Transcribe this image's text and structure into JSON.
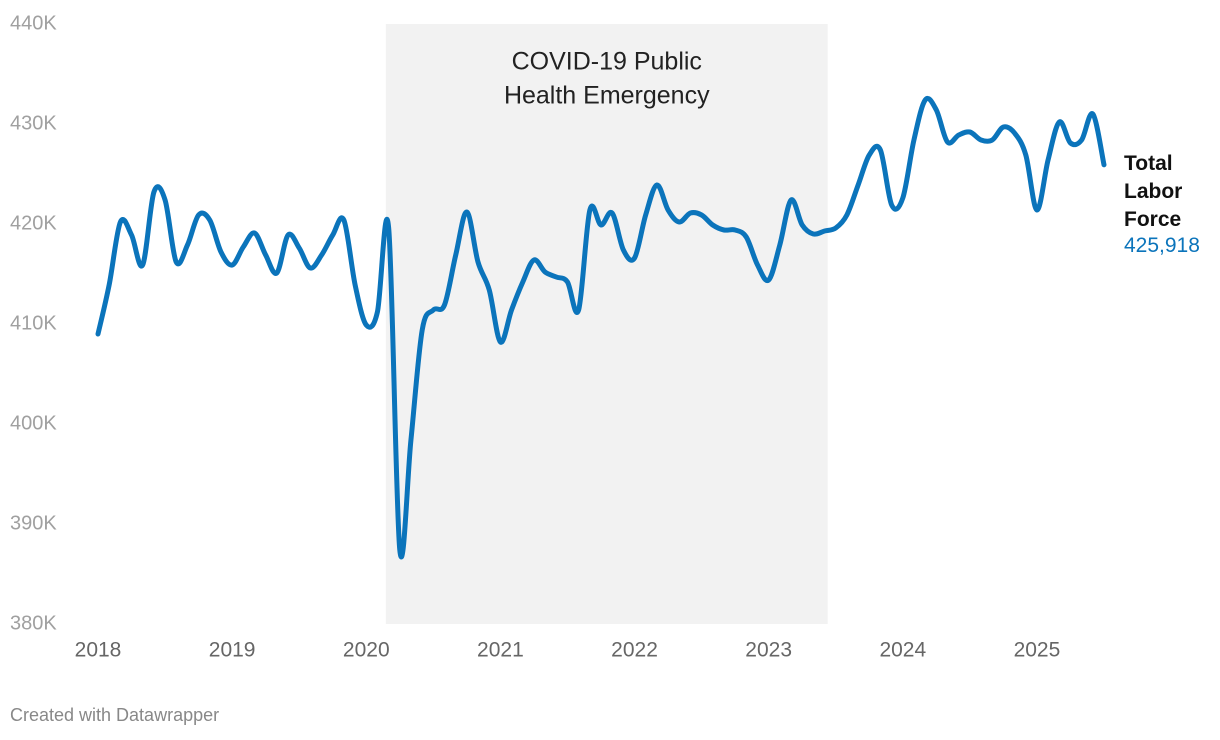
{
  "chart_data": {
    "type": "line",
    "x": [
      2018,
      2018.083,
      2018.167,
      2018.25,
      2018.333,
      2018.417,
      2018.5,
      2018.583,
      2018.667,
      2018.75,
      2018.833,
      2018.917,
      2019,
      2019.083,
      2019.167,
      2019.25,
      2019.333,
      2019.417,
      2019.5,
      2019.583,
      2019.667,
      2019.75,
      2019.833,
      2019.917,
      2020,
      2020.083,
      2020.167,
      2020.25,
      2020.333,
      2020.417,
      2020.5,
      2020.583,
      2020.667,
      2020.75,
      2020.833,
      2020.917,
      2021,
      2021.083,
      2021.167,
      2021.25,
      2021.333,
      2021.417,
      2021.5,
      2021.583,
      2021.667,
      2021.75,
      2021.833,
      2021.917,
      2022,
      2022.083,
      2022.167,
      2022.25,
      2022.333,
      2022.417,
      2022.5,
      2022.583,
      2022.667,
      2022.75,
      2022.833,
      2022.917,
      2023,
      2023.083,
      2023.167,
      2023.25,
      2023.333,
      2023.417,
      2023.5,
      2023.583,
      2023.667,
      2023.75,
      2023.833,
      2023.917,
      2024,
      2024.083,
      2024.167,
      2024.25,
      2024.333,
      2024.417,
      2024.5,
      2024.583,
      2024.667,
      2024.75,
      2024.833,
      2024.917,
      2025,
      2025.083,
      2025.167,
      2025.25,
      2025.333,
      2025.417,
      2025.5
    ],
    "series": [
      {
        "name": "Total Labor Force",
        "color": "#0b74bb",
        "values": [
          409.0,
          413.9,
          420.2,
          418.9,
          415.9,
          423.2,
          422.4,
          416.2,
          417.9,
          420.9,
          420.4,
          417.2,
          415.9,
          417.7,
          419.1,
          416.9,
          415.1,
          418.9,
          417.6,
          415.6,
          416.9,
          418.9,
          420.4,
          413.9,
          409.9,
          411.2,
          419.6,
          387.4,
          398.4,
          409.4,
          411.4,
          411.9,
          416.9,
          421.2,
          416.2,
          413.4,
          408.2,
          411.4,
          414.2,
          416.4,
          415.2,
          414.7,
          414.2,
          411.4,
          421.4,
          419.9,
          421.1,
          417.4,
          416.6,
          420.9,
          423.9,
          421.4,
          420.2,
          421.1,
          420.9,
          419.9,
          419.4,
          419.4,
          418.7,
          415.9,
          414.4,
          417.9,
          422.4,
          419.9,
          419.0,
          419.3,
          419.6,
          420.9,
          423.9,
          426.9,
          427.4,
          421.9,
          422.6,
          428.4,
          432.4,
          431.4,
          428.2,
          428.9,
          429.2,
          428.4,
          428.4,
          429.7,
          429.1,
          426.9,
          421.4,
          426.4,
          430.2,
          428.1,
          428.4,
          431.0,
          425.918
        ],
        "value_labels": [
          null,
          null,
          null,
          null,
          null,
          null,
          null,
          null,
          null,
          null,
          null,
          null,
          null,
          null,
          null,
          null,
          null,
          null,
          null,
          null,
          null,
          null,
          null,
          null,
          null,
          null,
          null,
          null,
          null,
          null,
          null,
          null,
          null,
          null,
          null,
          null,
          null,
          null,
          null,
          null,
          null,
          null,
          null,
          null,
          null,
          null,
          null,
          null,
          null,
          null,
          null,
          null,
          null,
          null,
          null,
          null,
          null,
          null,
          null,
          null,
          null,
          null,
          null,
          null,
          null,
          null,
          null,
          null,
          null,
          null,
          null,
          null,
          null,
          null,
          null,
          null,
          null,
          null,
          null,
          null,
          null,
          null,
          null,
          null,
          null,
          null,
          null,
          null,
          null,
          null,
          "425,918"
        ]
      }
    ],
    "xlim": [
      2018,
      2025.5
    ],
    "xticks": [
      2018,
      2019,
      2020,
      2021,
      2022,
      2023,
      2024,
      2025
    ],
    "ylim": [
      380,
      440
    ],
    "yticks": [
      {
        "value": 380,
        "label": "380K"
      },
      {
        "value": 390,
        "label": "390K"
      },
      {
        "value": 400,
        "label": "400K"
      },
      {
        "value": 410,
        "label": "410K"
      },
      {
        "value": 420,
        "label": "420K"
      },
      {
        "value": 430,
        "label": "430K"
      },
      {
        "value": 440,
        "label": "440K"
      }
    ],
    "shaded_range": {
      "x": [
        2020.146,
        2023.44
      ],
      "label": [
        "COVID-19 Public",
        "Health Emergency"
      ]
    },
    "footer": "Created with Datawrapper"
  }
}
